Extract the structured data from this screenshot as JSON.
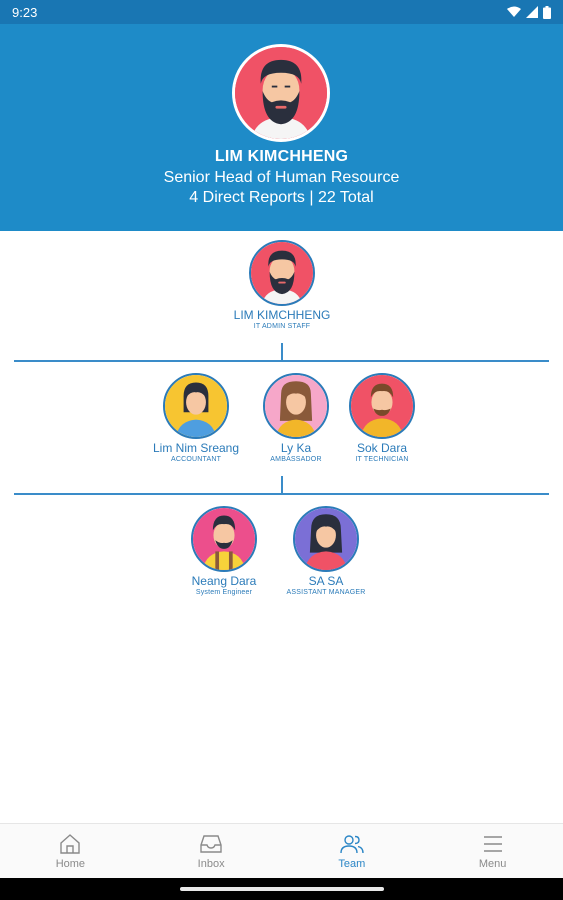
{
  "status_bar": {
    "time": "9:23"
  },
  "header": {
    "name": "LIM KIMCHHENG",
    "title": "Senior Head of Human Resource",
    "reports": "4 Direct Reports | 22 Total"
  },
  "org": {
    "root": {
      "name": "LIM KIMCHHENG",
      "role": "IT ADMIN STAFF"
    },
    "level1": [
      {
        "name": "Lim  Nim Sreang",
        "role": "ACCOUNTANT"
      },
      {
        "name": "Ly Ka",
        "role": "AMBASSADOR"
      },
      {
        "name": "Sok Dara",
        "role": "IT TECHNICIAN"
      }
    ],
    "level2": [
      {
        "name": "Neang Dara",
        "role": "System Engineer"
      },
      {
        "name": "SA SA",
        "role": "ASSISTANT MANAGER"
      }
    ]
  },
  "nav": {
    "items": [
      {
        "label": "Home",
        "icon": "home-icon"
      },
      {
        "label": "Inbox",
        "icon": "inbox-icon"
      },
      {
        "label": "Team",
        "icon": "team-icon"
      },
      {
        "label": "Menu",
        "icon": "menu-icon"
      }
    ],
    "active": "Team"
  },
  "colors": {
    "header_bg": "#1e8bc8",
    "status_bg": "#1976b3",
    "accent": "#2b86c6",
    "line": "#3a8cc9"
  }
}
